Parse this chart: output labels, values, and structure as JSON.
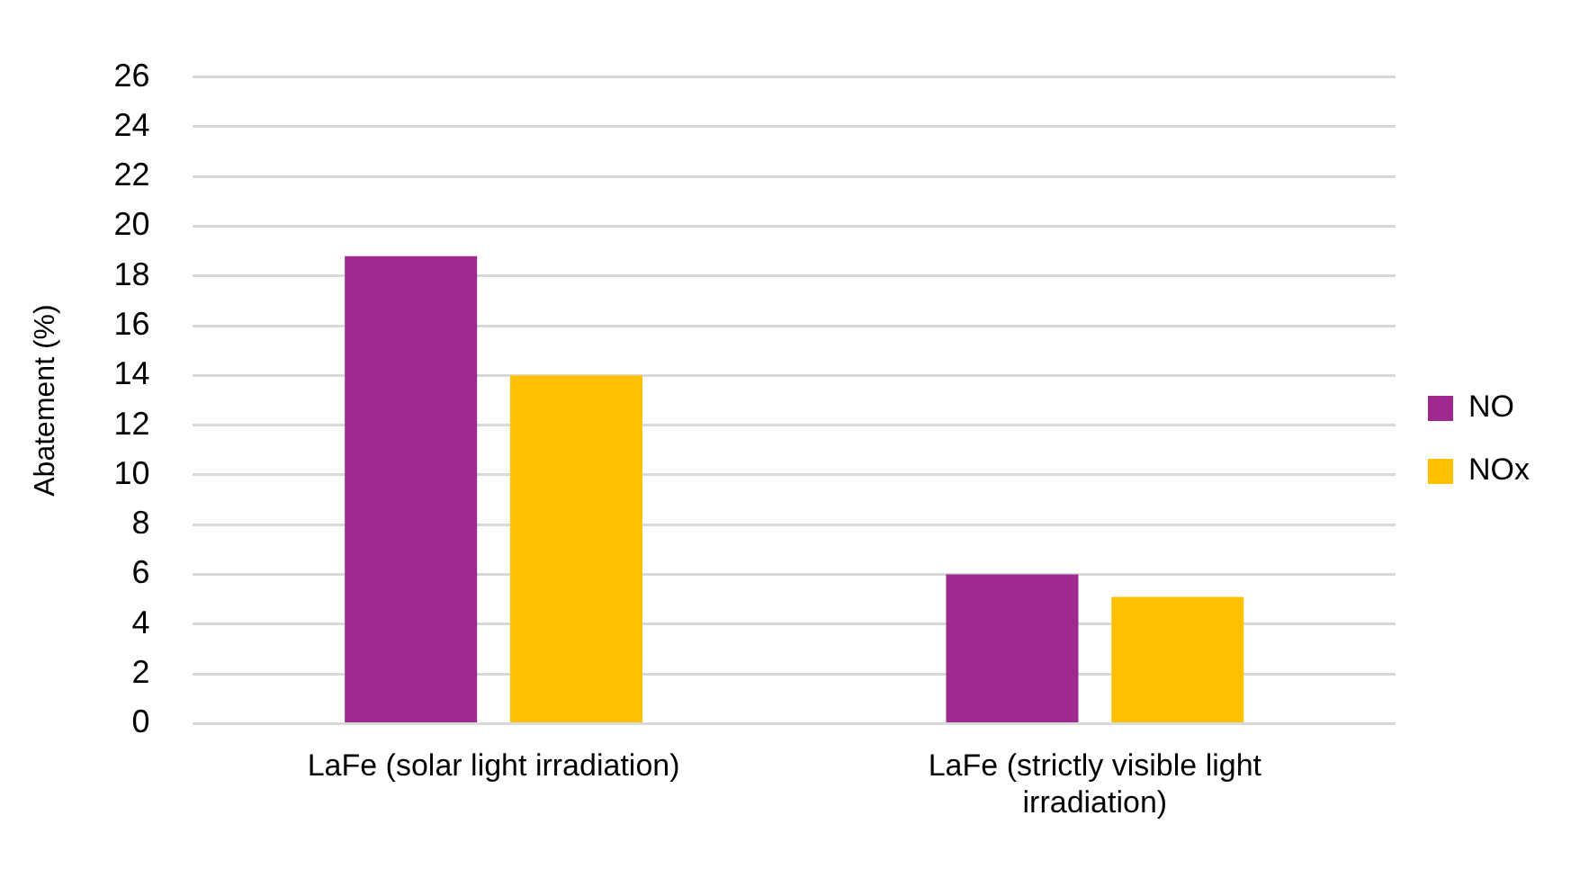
{
  "chart_data": {
    "type": "bar",
    "ylabel": "Abatement (%)",
    "categories": [
      "LaFe (solar light irradiation)",
      "LaFe (strictly visible light irradiation)"
    ],
    "series": [
      {
        "name": "NO",
        "color": "#9e2a8f",
        "values": [
          18.8,
          6.0
        ]
      },
      {
        "name": "NOx",
        "color": "#ffc000",
        "values": [
          14.0,
          5.1
        ]
      }
    ],
    "ylim": [
      0,
      26
    ],
    "yticks": [
      0,
      2,
      4,
      6,
      8,
      10,
      12,
      14,
      16,
      18,
      20,
      22,
      24,
      26
    ],
    "grid": "y",
    "legend": "right"
  }
}
